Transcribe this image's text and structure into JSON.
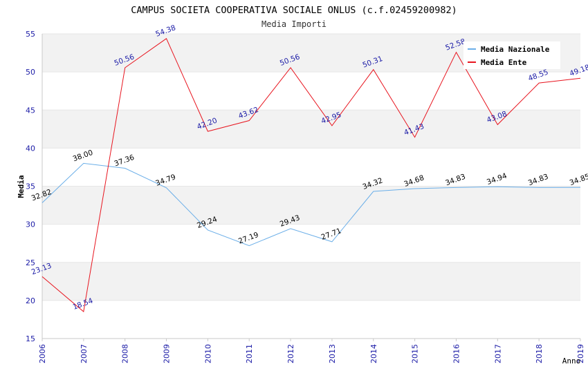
{
  "chart_data": {
    "type": "line",
    "title": "CAMPUS SOCIETA COOPERATIVA SOCIALE ONLUS (c.f.02459200982)",
    "subtitle": "Media Importi",
    "xlabel": "Anno",
    "ylabel": "Media",
    "x": [
      "2006",
      "2007",
      "2008",
      "2009",
      "2010",
      "2011",
      "2012",
      "2013",
      "2014",
      "2015",
      "2016",
      "2017",
      "2018",
      "2019"
    ],
    "ylim": [
      15,
      55
    ],
    "yticks": [
      15,
      20,
      25,
      30,
      35,
      40,
      45,
      50,
      55
    ],
    "grid": true,
    "legend_position": "top-right",
    "series": [
      {
        "name": "Media Nazionale",
        "color": "#6aaee8",
        "label_color": "#000000",
        "values": [
          32.82,
          38.0,
          37.36,
          34.79,
          29.24,
          27.19,
          29.43,
          27.71,
          34.32,
          34.68,
          34.83,
          34.94,
          34.83,
          34.85
        ],
        "labels": [
          "32.82",
          "38.00",
          "37.36",
          "34.79",
          "29.24",
          "27.19",
          "29.43",
          "27.71",
          "34.32",
          "34.68",
          "34.83",
          "34.94",
          "34.83",
          "34.85"
        ]
      },
      {
        "name": "Media Ente",
        "color": "#e8141e",
        "label_color": "#1a1aa6",
        "values": [
          23.13,
          18.54,
          50.56,
          54.38,
          42.2,
          43.62,
          50.56,
          42.95,
          50.31,
          41.43,
          52.58,
          43.08,
          48.55,
          49.18
        ],
        "labels": [
          "23.13",
          "18.54",
          "50.56",
          "54.38",
          "42.20",
          "43.62",
          "50.56",
          "42.95",
          "50.31",
          "41.43",
          "52.58",
          "43.08",
          "48.55",
          "49.18"
        ]
      }
    ]
  }
}
